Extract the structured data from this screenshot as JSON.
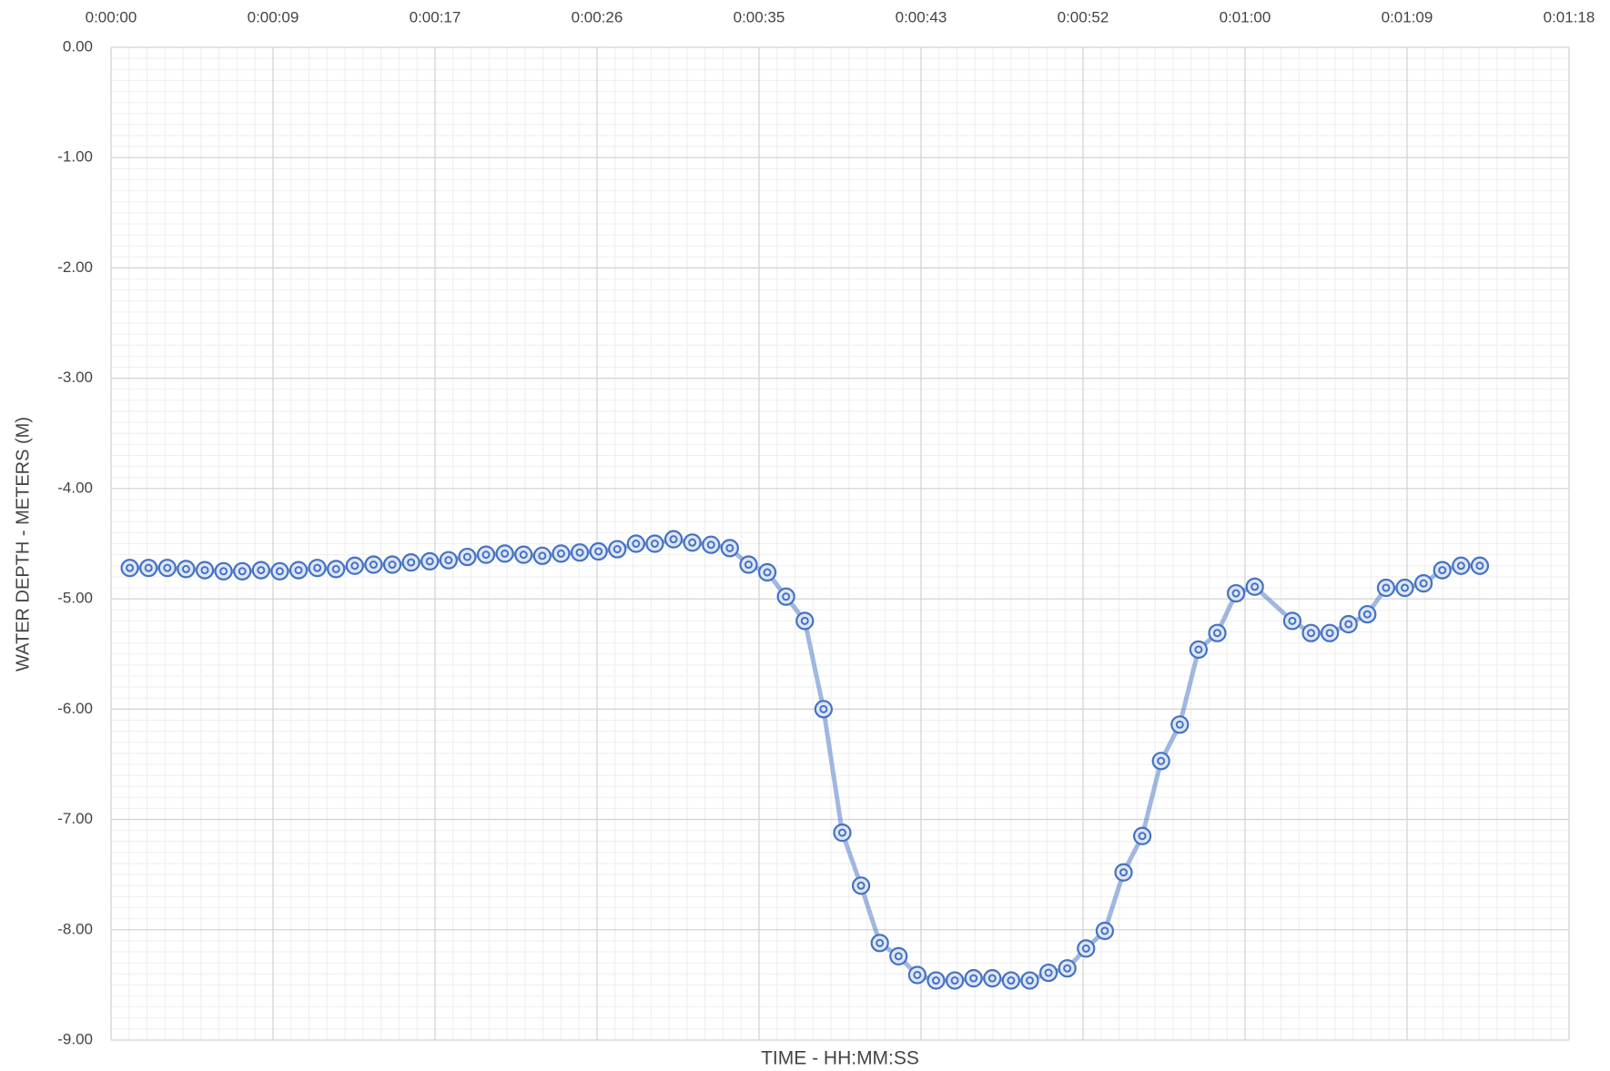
{
  "chart_data": {
    "type": "line",
    "x_label": "TIME  -  HH:MM:SS",
    "y_label": "WATER DEPTH - METERS (M)",
    "x": [
      1,
      2,
      3,
      4,
      5,
      6,
      7,
      8,
      9,
      10,
      11,
      12,
      13,
      14,
      15,
      16,
      17,
      18,
      19,
      20,
      21,
      22,
      23,
      24,
      25,
      26,
      27,
      28,
      29,
      30,
      31,
      32,
      33,
      34,
      35,
      36,
      37,
      38,
      39,
      40,
      41,
      42,
      43,
      44,
      45,
      46,
      47,
      48,
      49,
      50,
      51,
      52,
      53,
      54,
      55,
      56,
      57,
      58,
      59,
      60,
      61,
      63,
      64,
      65,
      66,
      67,
      68,
      69,
      70,
      71,
      72,
      73
    ],
    "series": [
      {
        "color": "#4472c4",
        "values": [
          -4.72,
          -4.72,
          -4.72,
          -4.73,
          -4.74,
          -4.75,
          -4.75,
          -4.74,
          -4.75,
          -4.74,
          -4.72,
          -4.73,
          -4.7,
          -4.69,
          -4.69,
          -4.67,
          -4.66,
          -4.65,
          -4.62,
          -4.6,
          -4.59,
          -4.6,
          -4.61,
          -4.59,
          -4.58,
          -4.57,
          -4.55,
          -4.5,
          -4.5,
          -4.46,
          -4.49,
          -4.51,
          -4.54,
          -4.69,
          -4.76,
          -4.98,
          -5.2,
          -6.0,
          -7.12,
          -7.6,
          -8.12,
          -8.24,
          -8.41,
          -8.46,
          -8.46,
          -8.44,
          -8.44,
          -8.46,
          -8.46,
          -8.39,
          -8.35,
          -8.17,
          -8.01,
          -7.48,
          -7.15,
          -6.47,
          -6.14,
          -5.46,
          -5.31,
          -4.95,
          -4.89,
          -5.2,
          -5.31,
          -5.31,
          -5.23,
          -5.14,
          -4.9,
          -4.9,
          -4.86,
          -4.74,
          -4.7,
          -4.7
        ]
      }
    ],
    "xlim": [
      0,
      77.76
    ],
    "xticks": [
      {
        "value": 0,
        "label": "0:00:00"
      },
      {
        "value": 8.64,
        "label": "0:00:09"
      },
      {
        "value": 17.28,
        "label": "0:00:17"
      },
      {
        "value": 25.92,
        "label": "0:00:26"
      },
      {
        "value": 34.56,
        "label": "0:00:35"
      },
      {
        "value": 43.2,
        "label": "0:00:43"
      },
      {
        "value": 51.84,
        "label": "0:00:52"
      },
      {
        "value": 60.48,
        "label": "0:01:00"
      },
      {
        "value": 69.12,
        "label": "0:01:09"
      },
      {
        "value": 77.76,
        "label": "0:01:18"
      }
    ],
    "ylim": [
      -9,
      0
    ],
    "yticks": [
      {
        "value": 0,
        "label": "0.00"
      },
      {
        "value": -1,
        "label": "-1.00"
      },
      {
        "value": -2,
        "label": "-2.00"
      },
      {
        "value": -3,
        "label": "-3.00"
      },
      {
        "value": -4,
        "label": "-4.00"
      },
      {
        "value": -5,
        "label": "-5.00"
      },
      {
        "value": -6,
        "label": "-6.00"
      },
      {
        "value": -7,
        "label": "-7.00"
      },
      {
        "value": -8,
        "label": "-8.00"
      },
      {
        "value": -9,
        "label": "-9.00"
      }
    ],
    "grid": true,
    "minor_grid": true,
    "x_axis_position": "top"
  }
}
